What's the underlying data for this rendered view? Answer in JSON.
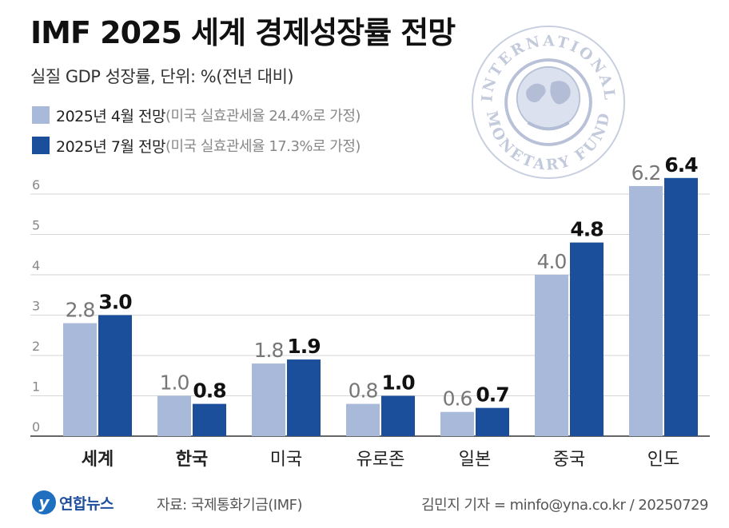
{
  "header": {
    "title": "IMF 2025 세계 경제성장률 전망",
    "subtitle": "실질 GDP 성장률, 단위: %(전년 대비)"
  },
  "legend": [
    {
      "label": "2025년 4월 전망",
      "note": "(미국 실효관세율 24.4%로 가정)",
      "color": "#a9b9d9"
    },
    {
      "label": "2025년 7월 전망",
      "note": "(미국 실효관세율 17.3%로 가정)",
      "color": "#1b4f9b"
    }
  ],
  "seal": {
    "top_text": "INTERNATIONAL",
    "bottom_text": "MONETARY FUND"
  },
  "chart_data": {
    "type": "bar",
    "categories": [
      "세계",
      "한국",
      "미국",
      "유로존",
      "일본",
      "중국",
      "인도"
    ],
    "bold_categories": [
      "세계",
      "한국"
    ],
    "series": [
      {
        "name": "2025년 4월 전망",
        "values": [
          2.8,
          1.0,
          1.8,
          0.8,
          0.6,
          4.0,
          6.2
        ],
        "labels": [
          "2.8",
          "1.0",
          "1.8",
          "0.8",
          "0.6",
          "4.0",
          "6.2"
        ],
        "color": "#a9b9d9"
      },
      {
        "name": "2025년 7월 전망",
        "values": [
          3.0,
          0.8,
          1.9,
          1.0,
          0.7,
          4.8,
          6.4
        ],
        "labels": [
          "3.0",
          "0.8",
          "1.9",
          "1.0",
          "0.7",
          "4.8",
          "6.4"
        ],
        "color": "#1b4f9b"
      }
    ],
    "ylim": [
      0,
      6.5
    ],
    "y_ticks": [
      "0",
      "1",
      "2",
      "3",
      "4",
      "5",
      "6"
    ],
    "grid": true,
    "legend_position": "top-left"
  },
  "footer": {
    "logo_text": "연합뉴스",
    "source": "자료: 국제통화기금(IMF)",
    "credit": "김민지 기자 = minfo@yna.co.kr / 20250729"
  }
}
